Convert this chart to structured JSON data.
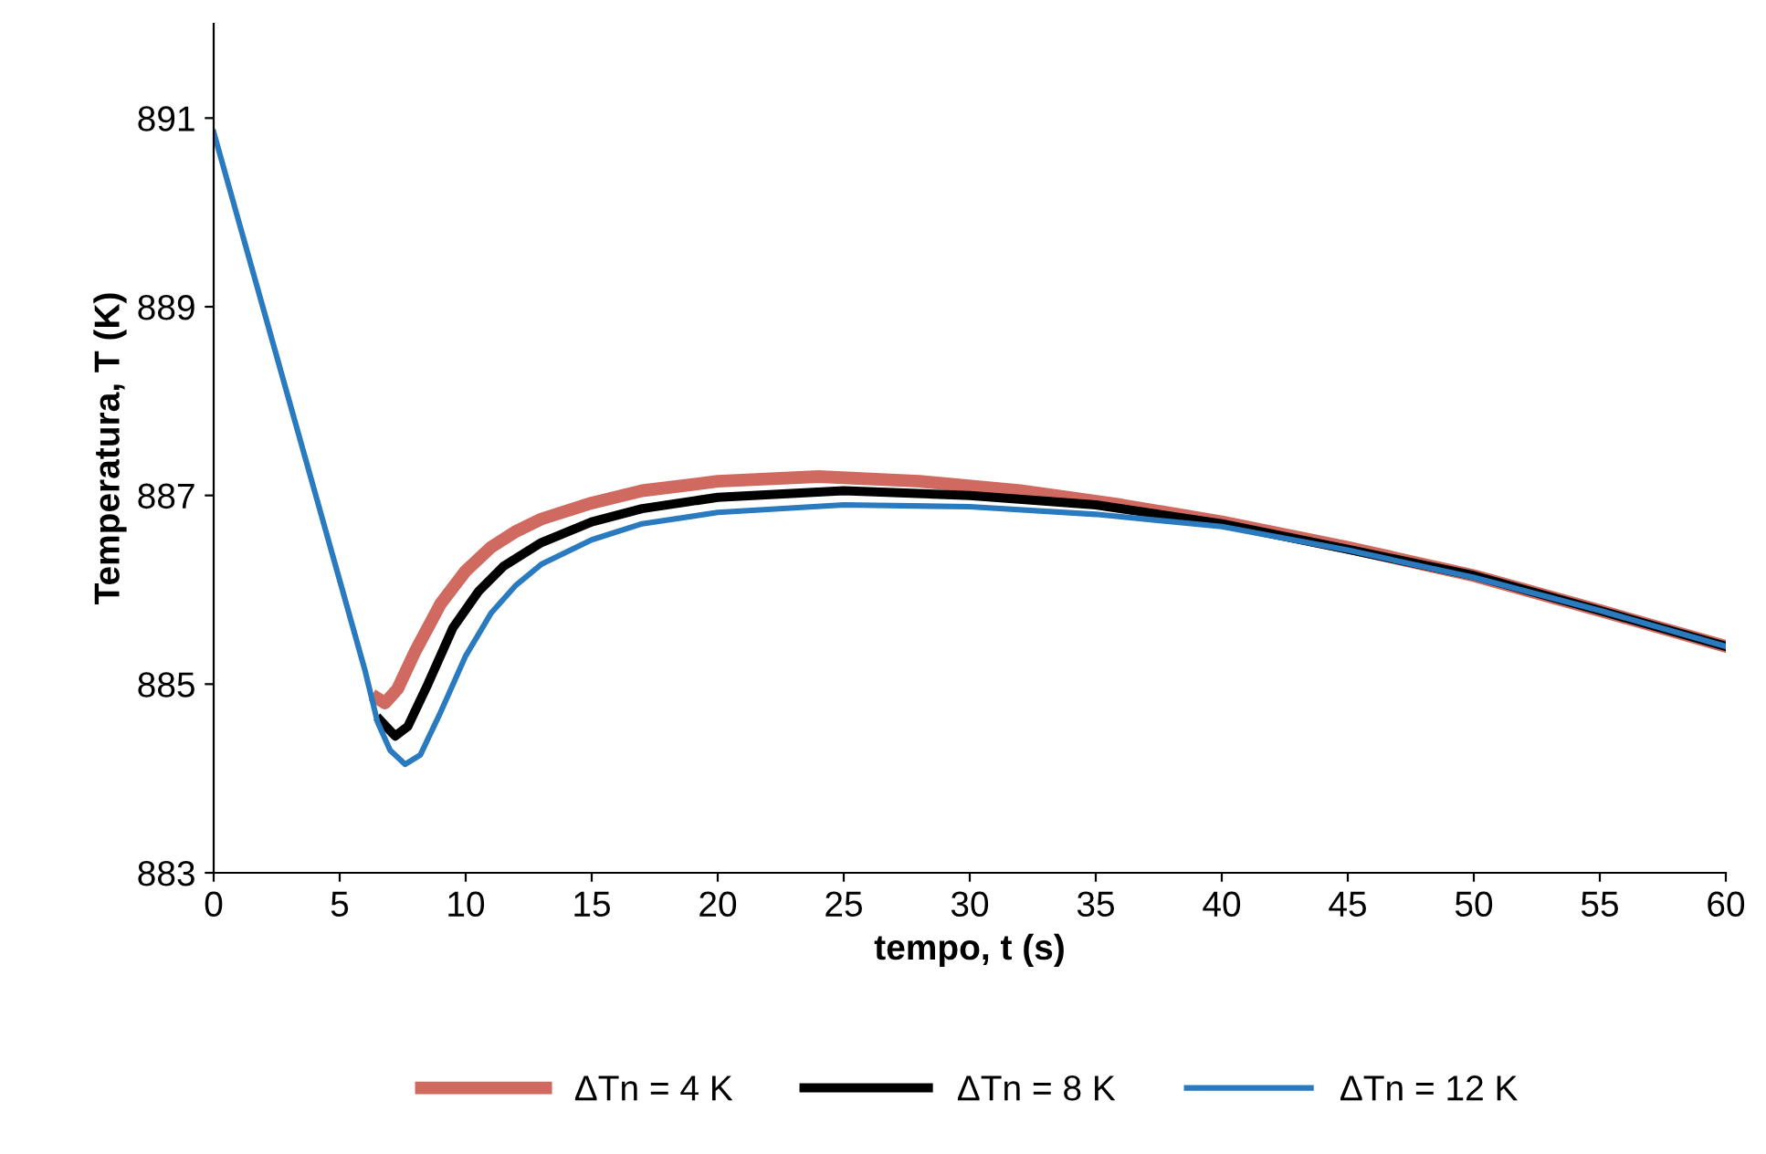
{
  "chart_data": {
    "type": "line",
    "xlabel": "tempo, t (s)",
    "ylabel": "Temperatura, T (K)",
    "xlim": [
      0,
      60
    ],
    "xticks": [
      0,
      5,
      10,
      15,
      20,
      25,
      30,
      35,
      40,
      45,
      50,
      55,
      60
    ],
    "ylim": [
      883,
      892
    ],
    "yticks": [
      883,
      885,
      887,
      889,
      891
    ],
    "grid": false,
    "legend": "bottom",
    "marker": "none",
    "line_style": "solid",
    "series": [
      {
        "name": "ΔTn = 4 K",
        "color": "#d06a60",
        "x": [
          6.5,
          6.8,
          7.3,
          8,
          9,
          10,
          11,
          12,
          13,
          15,
          17,
          20,
          24,
          28,
          32,
          36,
          40,
          45,
          50,
          55,
          60
        ],
        "values": [
          884.85,
          884.8,
          884.95,
          885.35,
          885.85,
          886.2,
          886.45,
          886.62,
          886.75,
          886.92,
          887.05,
          887.15,
          887.2,
          887.15,
          887.05,
          886.9,
          886.72,
          886.45,
          886.15,
          885.78,
          885.4
        ]
      },
      {
        "name": "ΔTn = 8 K",
        "color": "#000000",
        "x": [
          6.6,
          7.2,
          7.7,
          8.5,
          9.5,
          10.5,
          11.5,
          13,
          15,
          17,
          20,
          25,
          30,
          35,
          40,
          45,
          50,
          55,
          60
        ],
        "values": [
          884.62,
          884.45,
          884.55,
          885.0,
          885.6,
          885.98,
          886.25,
          886.5,
          886.72,
          886.86,
          886.98,
          887.05,
          887.0,
          886.9,
          886.7,
          886.43,
          886.15,
          885.78,
          885.4
        ]
      },
      {
        "name": "ΔTn = 12 K",
        "color": "#2a7ac0",
        "x": [
          0,
          1,
          2,
          3,
          4,
          5,
          6,
          6.5,
          7,
          7.6,
          8.2,
          9,
          10,
          11,
          12,
          13,
          15,
          17,
          20,
          25,
          30,
          35,
          40,
          45,
          50,
          55,
          60
        ],
        "values": [
          890.85,
          889.9,
          888.95,
          888.0,
          887.05,
          886.1,
          885.15,
          884.6,
          884.3,
          884.15,
          884.25,
          884.7,
          885.3,
          885.75,
          886.05,
          886.27,
          886.53,
          886.7,
          886.82,
          886.9,
          886.88,
          886.8,
          886.67,
          886.42,
          886.13,
          885.78,
          885.4
        ]
      }
    ]
  }
}
